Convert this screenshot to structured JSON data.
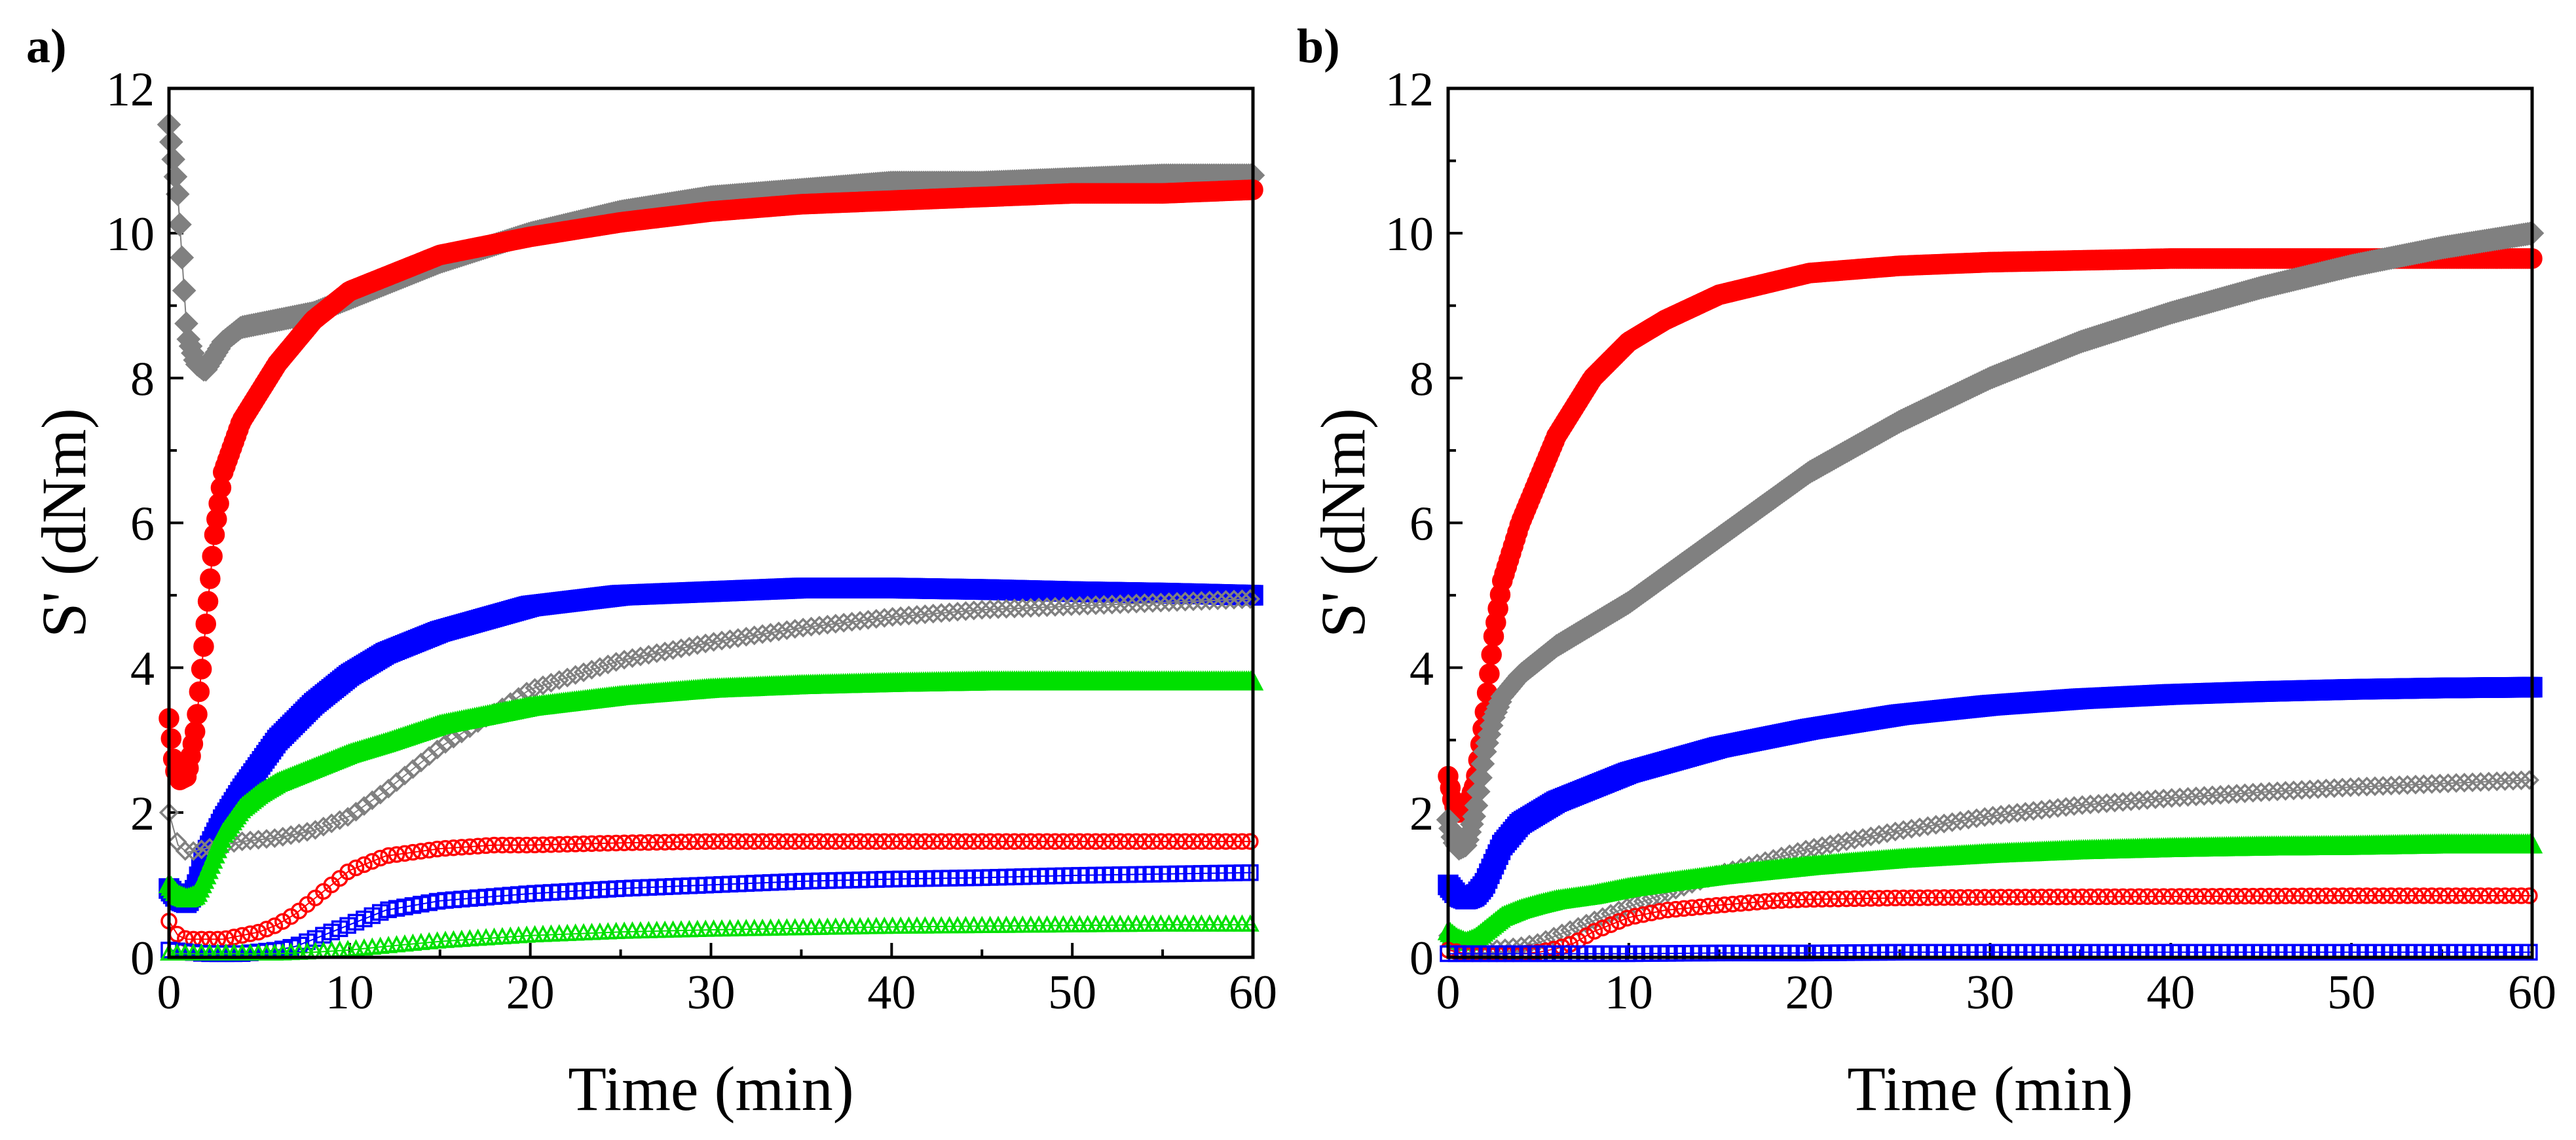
{
  "figure": {
    "panel_labels": [
      "a)",
      "b)"
    ]
  },
  "chart_data": [
    {
      "type": "scatter",
      "panel": "a)",
      "title": "",
      "xlabel": "Time (min)",
      "ylabel": "S' (dNm)",
      "xlim": [
        0,
        60
      ],
      "ylim": [
        0,
        12
      ],
      "xticks": [
        0,
        10,
        20,
        30,
        40,
        50,
        60
      ],
      "yticks": [
        0,
        2,
        4,
        6,
        8,
        10,
        12
      ],
      "grid": false,
      "series": [
        {
          "color": "#808080",
          "marker": "diamond",
          "filled": true,
          "x": [
            0,
            0.5,
            1,
            1.5,
            2,
            3,
            4,
            6,
            8,
            10,
            15,
            20,
            25,
            30,
            35,
            40,
            45,
            50,
            55,
            60
          ],
          "y": [
            11.5,
            10.5,
            8.6,
            8.2,
            8.1,
            8.5,
            8.7,
            8.8,
            8.9,
            9.1,
            9.6,
            10.0,
            10.3,
            10.5,
            10.6,
            10.7,
            10.7,
            10.75,
            10.8,
            10.8
          ]
        },
        {
          "color": "#ff0000",
          "marker": "circle",
          "filled": true,
          "x": [
            0,
            0.3,
            0.6,
            1,
            1.5,
            2,
            2.5,
            3,
            4,
            5,
            6,
            8,
            10,
            12,
            15,
            20,
            25,
            30,
            35,
            40,
            45,
            50,
            55,
            60
          ],
          "y": [
            3.3,
            2.6,
            2.45,
            2.5,
            3.2,
            4.5,
            5.8,
            6.7,
            7.4,
            7.8,
            8.2,
            8.8,
            9.2,
            9.4,
            9.7,
            9.95,
            10.15,
            10.3,
            10.4,
            10.45,
            10.5,
            10.55,
            10.55,
            10.6
          ]
        },
        {
          "color": "#0000ff",
          "marker": "square",
          "filled": true,
          "x": [
            0,
            0.5,
            1,
            1.5,
            2,
            3,
            4,
            5,
            6,
            8,
            10,
            12,
            15,
            20,
            25,
            30,
            35,
            40,
            45,
            50,
            55,
            60
          ],
          "y": [
            0.95,
            0.8,
            0.75,
            0.95,
            1.4,
            1.9,
            2.3,
            2.65,
            3.0,
            3.5,
            3.9,
            4.2,
            4.5,
            4.85,
            5.0,
            5.05,
            5.1,
            5.1,
            5.08,
            5.05,
            5.03,
            5.0
          ]
        },
        {
          "color": "#808080",
          "marker": "diamond",
          "filled": false,
          "x": [
            0,
            0.5,
            1,
            2,
            4,
            6,
            8,
            10,
            12,
            15,
            20,
            25,
            30,
            35,
            40,
            45,
            50,
            55,
            60
          ],
          "y": [
            2.0,
            1.55,
            1.45,
            1.5,
            1.6,
            1.65,
            1.75,
            1.95,
            2.3,
            2.9,
            3.7,
            4.1,
            4.35,
            4.55,
            4.7,
            4.8,
            4.85,
            4.9,
            4.95
          ]
        },
        {
          "color": "#00e000",
          "marker": "triangle",
          "filled": true,
          "x": [
            0,
            0.5,
            1,
            1.5,
            2,
            3,
            4,
            5,
            6,
            8,
            10,
            12,
            15,
            20,
            25,
            30,
            35,
            40,
            45,
            50,
            55,
            60
          ],
          "y": [
            1.0,
            0.85,
            0.8,
            0.85,
            1.1,
            1.7,
            2.05,
            2.25,
            2.4,
            2.6,
            2.8,
            2.95,
            3.2,
            3.45,
            3.6,
            3.7,
            3.75,
            3.78,
            3.8,
            3.8,
            3.8,
            3.8
          ]
        },
        {
          "color": "#ff0000",
          "marker": "circle",
          "filled": false,
          "x": [
            0,
            0.5,
            1,
            2,
            3,
            4,
            5,
            6,
            7,
            8,
            9,
            10,
            12,
            15,
            18,
            20,
            25,
            30,
            40,
            50,
            60
          ],
          "y": [
            0.5,
            0.3,
            0.25,
            0.25,
            0.25,
            0.3,
            0.35,
            0.45,
            0.6,
            0.8,
            1.0,
            1.2,
            1.4,
            1.5,
            1.55,
            1.55,
            1.58,
            1.6,
            1.6,
            1.6,
            1.6
          ]
        },
        {
          "color": "#0000ff",
          "marker": "square",
          "filled": false,
          "x": [
            0,
            2,
            4,
            6,
            7,
            8,
            9,
            10,
            11,
            12,
            15,
            20,
            25,
            30,
            35,
            40,
            45,
            50,
            55,
            60
          ],
          "y": [
            0.1,
            0.05,
            0.05,
            0.1,
            0.15,
            0.25,
            0.35,
            0.45,
            0.55,
            0.65,
            0.78,
            0.88,
            0.95,
            1.0,
            1.05,
            1.08,
            1.1,
            1.13,
            1.15,
            1.17
          ]
        },
        {
          "color": "#00e000",
          "marker": "triangle",
          "filled": false,
          "x": [
            0,
            2,
            4,
            6,
            8,
            10,
            12,
            15,
            20,
            25,
            30,
            35,
            40,
            45,
            50,
            55,
            60
          ],
          "y": [
            0.05,
            0.05,
            0.05,
            0.05,
            0.07,
            0.1,
            0.15,
            0.22,
            0.3,
            0.35,
            0.38,
            0.4,
            0.42,
            0.43,
            0.44,
            0.45,
            0.45
          ]
        }
      ]
    },
    {
      "type": "scatter",
      "panel": "b)",
      "title": "",
      "xlabel": "Time (min)",
      "ylabel": "S' (dNm)",
      "xlim": [
        0,
        60
      ],
      "ylim": [
        0,
        12
      ],
      "xticks": [
        0,
        10,
        20,
        30,
        40,
        50,
        60
      ],
      "yticks": [
        0,
        2,
        4,
        6,
        8,
        10,
        12
      ],
      "grid": false,
      "series": [
        {
          "color": "#ff0000",
          "marker": "circle",
          "filled": true,
          "x": [
            0,
            0.3,
            0.6,
            1,
            1.5,
            2,
            2.5,
            3,
            4,
            5,
            6,
            8,
            10,
            12,
            15,
            20,
            25,
            30,
            40,
            50,
            60
          ],
          "y": [
            2.5,
            2.1,
            2.0,
            2.05,
            2.4,
            3.3,
            4.4,
            5.2,
            6.0,
            6.6,
            7.2,
            8.0,
            8.5,
            8.8,
            9.15,
            9.45,
            9.55,
            9.6,
            9.65,
            9.65,
            9.65
          ]
        },
        {
          "color": "#808080",
          "marker": "diamond",
          "filled": true,
          "x": [
            0,
            0.3,
            0.6,
            1,
            1.5,
            2,
            2.5,
            3,
            4,
            5,
            6,
            8,
            10,
            15,
            20,
            25,
            30,
            35,
            40,
            45,
            50,
            55,
            60
          ],
          "y": [
            1.9,
            1.6,
            1.5,
            1.55,
            2.0,
            2.8,
            3.3,
            3.6,
            3.9,
            4.1,
            4.3,
            4.6,
            4.9,
            5.8,
            6.7,
            7.4,
            8.0,
            8.5,
            8.9,
            9.25,
            9.55,
            9.8,
            10.0
          ]
        },
        {
          "color": "#0000ff",
          "marker": "square",
          "filled": true,
          "x": [
            0,
            0.5,
            1,
            1.5,
            2,
            3,
            4,
            5,
            6,
            8,
            10,
            15,
            20,
            25,
            30,
            35,
            40,
            45,
            50,
            55,
            60
          ],
          "y": [
            1.0,
            0.85,
            0.8,
            0.85,
            1.0,
            1.55,
            1.85,
            2.0,
            2.15,
            2.35,
            2.55,
            2.9,
            3.15,
            3.35,
            3.48,
            3.57,
            3.63,
            3.67,
            3.7,
            3.72,
            3.73
          ]
        },
        {
          "color": "#808080",
          "marker": "diamond",
          "filled": false,
          "x": [
            0,
            0.5,
            1,
            2,
            3,
            4,
            5,
            6,
            8,
            10,
            15,
            20,
            25,
            30,
            35,
            40,
            45,
            50,
            55,
            60
          ],
          "y": [
            0.3,
            0.15,
            0.1,
            0.1,
            0.12,
            0.15,
            0.2,
            0.3,
            0.5,
            0.7,
            1.15,
            1.5,
            1.75,
            1.95,
            2.1,
            2.2,
            2.28,
            2.35,
            2.4,
            2.45
          ]
        },
        {
          "color": "#00e000",
          "marker": "triangle",
          "filled": true,
          "x": [
            0,
            0.5,
            1,
            1.5,
            2,
            3,
            4,
            5,
            6,
            8,
            10,
            12,
            15,
            20,
            25,
            30,
            35,
            40,
            45,
            50,
            55,
            60
          ],
          "y": [
            0.35,
            0.25,
            0.2,
            0.25,
            0.35,
            0.55,
            0.65,
            0.72,
            0.78,
            0.85,
            0.95,
            1.02,
            1.12,
            1.25,
            1.35,
            1.42,
            1.47,
            1.5,
            1.52,
            1.53,
            1.55,
            1.55
          ]
        },
        {
          "color": "#ff0000",
          "marker": "circle",
          "filled": false,
          "x": [
            0,
            1,
            2,
            3,
            4,
            5,
            6,
            7,
            8,
            10,
            12,
            15,
            18,
            20,
            25,
            30,
            40,
            50,
            60
          ],
          "y": [
            0.1,
            0.05,
            0.05,
            0.05,
            0.05,
            0.07,
            0.12,
            0.2,
            0.35,
            0.55,
            0.65,
            0.72,
            0.78,
            0.8,
            0.82,
            0.83,
            0.84,
            0.85,
            0.85
          ]
        },
        {
          "color": "#0000ff",
          "marker": "square",
          "filled": false,
          "x": [
            0,
            5,
            10,
            15,
            20,
            25,
            30,
            35,
            40,
            45,
            50,
            55,
            60
          ],
          "y": [
            0.05,
            0.05,
            0.05,
            0.06,
            0.06,
            0.07,
            0.07,
            0.07,
            0.07,
            0.07,
            0.07,
            0.07,
            0.07
          ]
        }
      ]
    }
  ]
}
